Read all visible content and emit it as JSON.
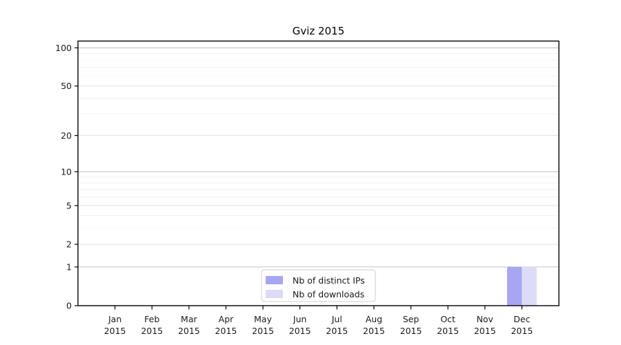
{
  "chart_data": {
    "type": "bar",
    "title": "Gviz 2015",
    "categories": [
      "Jan 2015",
      "Feb 2015",
      "Mar 2015",
      "Apr 2015",
      "May 2015",
      "Jun 2015",
      "Jul 2015",
      "Aug 2015",
      "Sep 2015",
      "Oct 2015",
      "Nov 2015",
      "Dec 2015"
    ],
    "series": [
      {
        "name": "Nb of distinct IPs",
        "color": "#a6a6f2",
        "values": [
          0,
          0,
          0,
          0,
          0,
          0,
          0,
          0,
          0,
          0,
          0,
          1
        ]
      },
      {
        "name": "Nb of downloads",
        "color": "#dcdcf8",
        "values": [
          0,
          0,
          0,
          0,
          0,
          0,
          0,
          0,
          0,
          0,
          0,
          1
        ]
      }
    ],
    "xlabel": "",
    "ylabel": "",
    "yscale": "log1p",
    "ylim": [
      0,
      113
    ],
    "yticks": [
      0,
      1,
      2,
      5,
      10,
      20,
      50,
      100
    ],
    "decade_yticks": [
      1,
      10,
      100
    ],
    "minor_yticks": [
      3,
      4,
      6,
      7,
      8,
      9,
      30,
      40,
      60,
      70,
      80,
      90
    ],
    "grid": true,
    "legend_position": "lower center",
    "colors": {
      "frame": "#000000",
      "tick_text": "#1a1a1a",
      "grid_decade": "#c2c2c2",
      "grid_labeled": "#e2e2e2",
      "grid_minor": "#efefef",
      "legend_border": "#cccccc",
      "legend_bg": "#ffffff"
    }
  }
}
